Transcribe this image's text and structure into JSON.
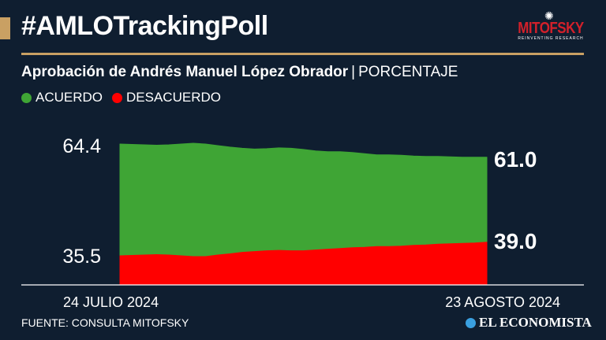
{
  "header": {
    "title": "#AMLOTrackingPoll",
    "logo_name": "MITOFSKY",
    "logo_tagline": "REINVENTING RESEARCH"
  },
  "subtitle": {
    "main": "Aprobación de Andrés Manuel López Obrador",
    "separator": "|",
    "unit": "PORCENTAJE"
  },
  "legend": [
    {
      "label": "ACUERDO",
      "color": "#3fa535"
    },
    {
      "label": "DESACUERDO",
      "color": "#ff0000"
    }
  ],
  "chart_data": {
    "type": "area",
    "x_start_label": "24 JULIO 2024",
    "x_end_label": "23 AGOSTO 2024",
    "start_labels": [
      "64.4",
      "35.5"
    ],
    "end_labels": [
      "61.0",
      "39.0"
    ],
    "series": [
      {
        "name": "ACUERDO",
        "color": "#3fa535",
        "values": [
          64.4,
          64.3,
          64.2,
          64.1,
          64.2,
          64.4,
          64.6,
          64.4,
          64.0,
          63.6,
          63.3,
          63.1,
          63.2,
          63.4,
          63.3,
          63.0,
          62.6,
          62.4,
          62.4,
          62.2,
          61.9,
          61.6,
          61.6,
          61.5,
          61.3,
          61.2,
          61.2,
          61.1,
          61.0,
          61.0,
          61.0
        ]
      },
      {
        "name": "DESACUERDO",
        "color": "#ff0000",
        "values": [
          35.5,
          35.6,
          35.7,
          35.8,
          35.7,
          35.5,
          35.3,
          35.3,
          35.7,
          36.0,
          36.4,
          36.6,
          36.8,
          36.9,
          36.8,
          36.8,
          37.0,
          37.2,
          37.4,
          37.6,
          37.7,
          37.9,
          37.9,
          38.0,
          38.2,
          38.3,
          38.5,
          38.6,
          38.7,
          38.8,
          39.0
        ]
      }
    ],
    "grid": false
  },
  "footer": {
    "source": "FUENTE: CONSULTA MITOFSKY",
    "brand": "EL ECONOMISTA"
  }
}
